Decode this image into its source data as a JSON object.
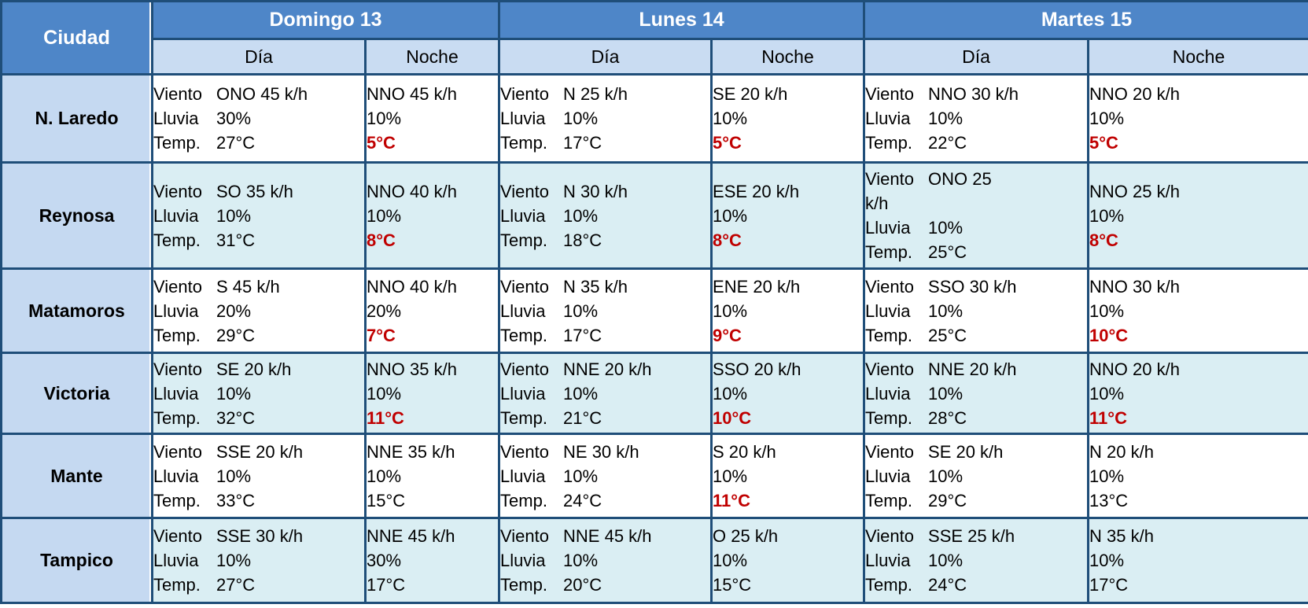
{
  "table": {
    "corner_header": "Ciudad",
    "day_headers": [
      "Domingo 13",
      "Lunes 14",
      "Martes 15"
    ],
    "period_headers": [
      "Día",
      "Noche"
    ],
    "labels": {
      "wind": "Viento",
      "rain": "Lluvia",
      "temp": "Temp."
    },
    "colors": {
      "header_blue": "#4e86c8",
      "subheader_blue": "#c9dcf2",
      "city_column_blue": "#c5d9f1",
      "alt_row_blue": "#daeef3",
      "border_navy": "#1f4e79",
      "temp_alert_red": "#c00000"
    },
    "rows": [
      {
        "city": "N. Laredo",
        "days": [
          {
            "dia": {
              "wind": "ONO 45 k/h",
              "rain": "30%",
              "temp": "27°C",
              "temp_red": false
            },
            "noche": {
              "wind": "NNO 45 k/h",
              "rain": "10%",
              "temp": "5°C",
              "temp_red": true
            }
          },
          {
            "dia": {
              "wind": "N 25 k/h",
              "rain": "10%",
              "temp": "17°C",
              "temp_red": false
            },
            "noche": {
              "wind": "SE 20 k/h",
              "rain": "10%",
              "temp": "5°C",
              "temp_red": true
            }
          },
          {
            "dia": {
              "wind": "NNO 30 k/h",
              "rain": "10%",
              "temp": "22°C",
              "temp_red": false
            },
            "noche": {
              "wind": "NNO 20 k/h",
              "rain": "10%",
              "temp": "5°C",
              "temp_red": true
            }
          }
        ]
      },
      {
        "city": "Reynosa",
        "days": [
          {
            "dia": {
              "wind": "SO 35 k/h",
              "rain": "10%",
              "temp": "31°C",
              "temp_red": false
            },
            "noche": {
              "wind": "NNO 40 k/h",
              "rain": "10%",
              "temp": "8°C",
              "temp_red": true
            }
          },
          {
            "dia": {
              "wind": "N 30 k/h",
              "rain": "10%",
              "temp": "18°C",
              "temp_red": false
            },
            "noche": {
              "wind": "ESE 20 k/h",
              "rain": "10%",
              "temp": "8°C",
              "temp_red": true
            }
          },
          {
            "dia": {
              "wind": "ONO 25\nk/h",
              "rain": "10%",
              "temp": "25°C",
              "temp_red": false
            },
            "noche": {
              "wind": "NNO 25 k/h",
              "rain": "10%",
              "temp": "8°C",
              "temp_red": true
            }
          }
        ]
      },
      {
        "city": "Matamoros",
        "days": [
          {
            "dia": {
              "wind": "S 45 k/h",
              "rain": "20%",
              "temp": "29°C",
              "temp_red": false
            },
            "noche": {
              "wind": "NNO 40 k/h",
              "rain": "20%",
              "temp": "7°C",
              "temp_red": true
            }
          },
          {
            "dia": {
              "wind": "N 35 k/h",
              "rain": "10%",
              "temp": "17°C",
              "temp_red": false
            },
            "noche": {
              "wind": "ENE 20 k/h",
              "rain": "10%",
              "temp": "9°C",
              "temp_red": true
            }
          },
          {
            "dia": {
              "wind": "SSO 30 k/h",
              "rain": "10%",
              "temp": "25°C",
              "temp_red": false
            },
            "noche": {
              "wind": "NNO 30 k/h",
              "rain": "10%",
              "temp": "10°C",
              "temp_red": true
            }
          }
        ]
      },
      {
        "city": "Victoria",
        "days": [
          {
            "dia": {
              "wind": "SE 20 k/h",
              "rain": "10%",
              "temp": "32°C",
              "temp_red": false
            },
            "noche": {
              "wind": "NNO 35 k/h",
              "rain": "10%",
              "temp": "11°C",
              "temp_red": true
            }
          },
          {
            "dia": {
              "wind": "NNE 20 k/h",
              "rain": "10%",
              "temp": "21°C",
              "temp_red": false
            },
            "noche": {
              "wind": "SSO 20 k/h",
              "rain": "10%",
              "temp": "10°C",
              "temp_red": true
            }
          },
          {
            "dia": {
              "wind": "NNE 20 k/h",
              "rain": "10%",
              "temp": "28°C",
              "temp_red": false
            },
            "noche": {
              "wind": "NNO 20 k/h",
              "rain": "10%",
              "temp": "11°C",
              "temp_red": true
            }
          }
        ]
      },
      {
        "city": "Mante",
        "days": [
          {
            "dia": {
              "wind": "SSE 20 k/h",
              "rain": "10%",
              "temp": "33°C",
              "temp_red": false
            },
            "noche": {
              "wind": "NNE 35 k/h",
              "rain": "10%",
              "temp": "15°C",
              "temp_red": false
            }
          },
          {
            "dia": {
              "wind": "NE 30 k/h",
              "rain": "10%",
              "temp": "24°C",
              "temp_red": false
            },
            "noche": {
              "wind": "S 20 k/h",
              "rain": "10%",
              "temp": "11°C",
              "temp_red": true
            }
          },
          {
            "dia": {
              "wind": "SE 20 k/h",
              "rain": "10%",
              "temp": "29°C",
              "temp_red": false
            },
            "noche": {
              "wind": "N 20 k/h",
              "rain": "10%",
              "temp": "13°C",
              "temp_red": false
            }
          }
        ]
      },
      {
        "city": "Tampico",
        "days": [
          {
            "dia": {
              "wind": "SSE 30 k/h",
              "rain": "10%",
              "temp": "27°C",
              "temp_red": false
            },
            "noche": {
              "wind": "NNE 45 k/h",
              "rain": "30%",
              "temp": "17°C",
              "temp_red": false
            }
          },
          {
            "dia": {
              "wind": "NNE 45 k/h",
              "rain": "10%",
              "temp": "20°C",
              "temp_red": false
            },
            "noche": {
              "wind": "O 25 k/h",
              "rain": "10%",
              "temp": "15°C",
              "temp_red": false
            }
          },
          {
            "dia": {
              "wind": "SSE 25 k/h",
              "rain": "10%",
              "temp": "24°C",
              "temp_red": false
            },
            "noche": {
              "wind": "N 35 k/h",
              "rain": "10%",
              "temp": "17°C",
              "temp_red": false
            }
          }
        ]
      }
    ]
  }
}
